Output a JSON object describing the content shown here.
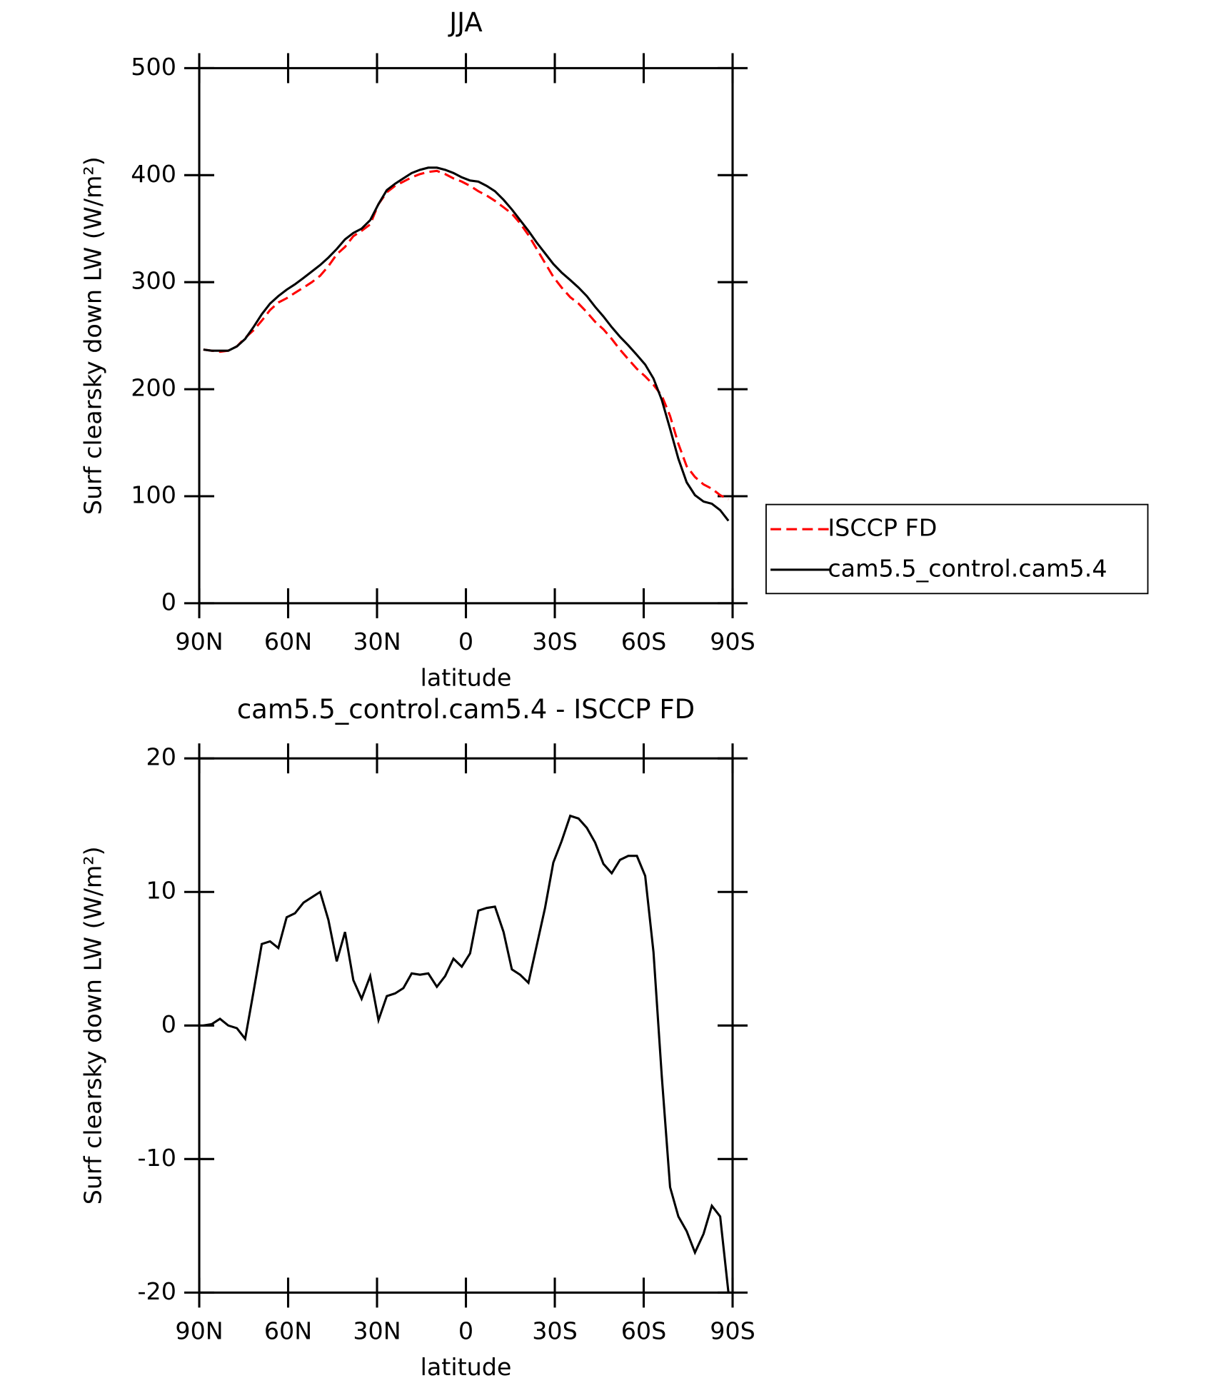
{
  "chart_data": [
    {
      "type": "line",
      "title": "JJA",
      "xlabel": "latitude",
      "ylabel": "Surf clearsky down LW (W/m²)",
      "x": [
        88.6,
        85.8,
        83.0,
        80.2,
        77.3,
        74.5,
        71.7,
        68.9,
        66.1,
        63.3,
        60.5,
        57.7,
        54.8,
        52.0,
        49.2,
        46.4,
        43.6,
        40.8,
        38.0,
        35.2,
        32.3,
        29.5,
        26.7,
        23.9,
        21.1,
        18.3,
        15.5,
        12.7,
        9.8,
        7.0,
        4.2,
        1.4,
        -1.4,
        -4.2,
        -7.0,
        -9.8,
        -12.7,
        -15.5,
        -18.3,
        -21.1,
        -23.9,
        -26.7,
        -29.5,
        -32.3,
        -35.2,
        -38.0,
        -40.8,
        -43.6,
        -46.4,
        -49.2,
        -52.0,
        -54.8,
        -57.7,
        -60.5,
        -63.3,
        -66.1,
        -68.9,
        -71.7,
        -74.5,
        -77.3,
        -80.2,
        -83.0,
        -85.8,
        -88.6
      ],
      "series": [
        {
          "name": "ISCCP FD",
          "color": "#ff0000",
          "line_style": "dashed",
          "values": [
            237,
            236,
            235,
            236,
            240,
            248,
            255,
            264,
            274,
            281,
            285,
            290,
            295,
            300,
            306,
            315,
            326,
            333,
            343,
            348,
            354,
            373,
            384,
            390,
            394,
            398,
            401,
            403,
            404,
            401,
            397,
            394,
            390,
            385,
            381,
            376,
            370,
            364,
            355,
            344,
            331,
            318,
            305,
            295,
            286,
            280,
            272,
            263,
            256,
            247,
            237,
            228,
            219,
            212,
            204,
            194,
            175,
            149,
            128,
            118,
            111,
            107,
            101,
            97
          ]
        },
        {
          "name": "cam5.5_control.cam5.4",
          "color": "#000000",
          "line_style": "solid",
          "values": [
            237,
            236,
            236,
            236,
            240,
            247,
            258,
            270,
            280,
            287,
            293,
            298,
            304,
            310,
            316,
            323,
            331,
            340,
            346,
            350,
            358,
            373,
            386,
            392,
            397,
            402,
            405,
            407,
            407,
            405,
            402,
            398,
            395,
            394,
            390,
            385,
            377,
            368,
            358,
            348,
            337,
            327,
            317,
            309,
            302,
            295,
            287,
            277,
            268,
            258,
            249,
            241,
            232,
            223,
            210,
            190,
            163,
            135,
            113,
            101,
            95,
            93,
            87,
            77
          ]
        }
      ],
      "xlim": [
        90,
        -90
      ],
      "xticks": [
        {
          "value": 90,
          "label": "90N"
        },
        {
          "value": 60,
          "label": "60N"
        },
        {
          "value": 30,
          "label": "30N"
        },
        0,
        {
          "value": -30,
          "label": "30S"
        },
        {
          "value": -60,
          "label": "60S"
        },
        {
          "value": -90,
          "label": "90S"
        }
      ],
      "ylim": [
        0,
        500
      ],
      "yticks": [
        0,
        100,
        200,
        300,
        400,
        500
      ],
      "legend": "right"
    },
    {
      "type": "line",
      "title": "cam5.5_control.cam5.4 - ISCCP FD",
      "xlabel": "latitude",
      "ylabel": "Surf clearsky down LW (W/m²)",
      "x": [
        88.6,
        85.8,
        83.0,
        80.2,
        77.3,
        74.5,
        71.7,
        68.9,
        66.1,
        63.3,
        60.5,
        57.7,
        54.8,
        52.0,
        49.2,
        46.4,
        43.6,
        40.8,
        38.0,
        35.2,
        32.3,
        29.5,
        26.7,
        23.9,
        21.1,
        18.3,
        15.5,
        12.7,
        9.8,
        7.0,
        4.2,
        1.4,
        -1.4,
        -4.2,
        -7.0,
        -9.8,
        -12.7,
        -15.5,
        -18.3,
        -21.1,
        -23.9,
        -26.7,
        -29.5,
        -32.3,
        -35.2,
        -38.0,
        -40.8,
        -43.6,
        -46.4,
        -49.2,
        -52.0,
        -54.8,
        -57.7,
        -60.5,
        -63.3,
        -66.1,
        -68.9,
        -71.7,
        -74.5,
        -77.3,
        -80.2,
        -83.0,
        -85.8,
        -88.6
      ],
      "series": [
        {
          "color": "#000000",
          "line_style": "solid",
          "values": [
            0,
            0.1,
            0.5,
            0,
            -0.2,
            -1.0,
            2.5,
            6.1,
            6.3,
            5.8,
            8.1,
            8.4,
            9.2,
            9.6,
            10.0,
            7.9,
            4.8,
            7.0,
            3.4,
            2.0,
            3.7,
            0.4,
            2.2,
            2.4,
            2.8,
            3.9,
            3.8,
            3.9,
            2.9,
            3.7,
            5.0,
            4.4,
            5.4,
            8.6,
            8.8,
            8.9,
            7.0,
            4.2,
            3.8,
            3.2,
            6.0,
            8.8,
            12.2,
            13.8,
            15.7,
            15.5,
            14.8,
            13.7,
            12.1,
            11.4,
            12.4,
            12.7,
            12.7,
            11.2,
            5.5,
            -3.8,
            -12.1,
            -14.3,
            -15.4,
            -17.0,
            -15.6,
            -13.5,
            -14.3,
            -20.0
          ]
        }
      ],
      "xlim": [
        90,
        -90
      ],
      "xticks": [
        {
          "value": 90,
          "label": "90N"
        },
        {
          "value": 60,
          "label": "60N"
        },
        {
          "value": 30,
          "label": "30N"
        },
        0,
        {
          "value": -30,
          "label": "30S"
        },
        {
          "value": -60,
          "label": "60S"
        },
        {
          "value": -90,
          "label": "90S"
        }
      ],
      "ylim": [
        -20,
        20
      ],
      "yticks": [
        -20,
        -10,
        0,
        10,
        20
      ]
    }
  ]
}
